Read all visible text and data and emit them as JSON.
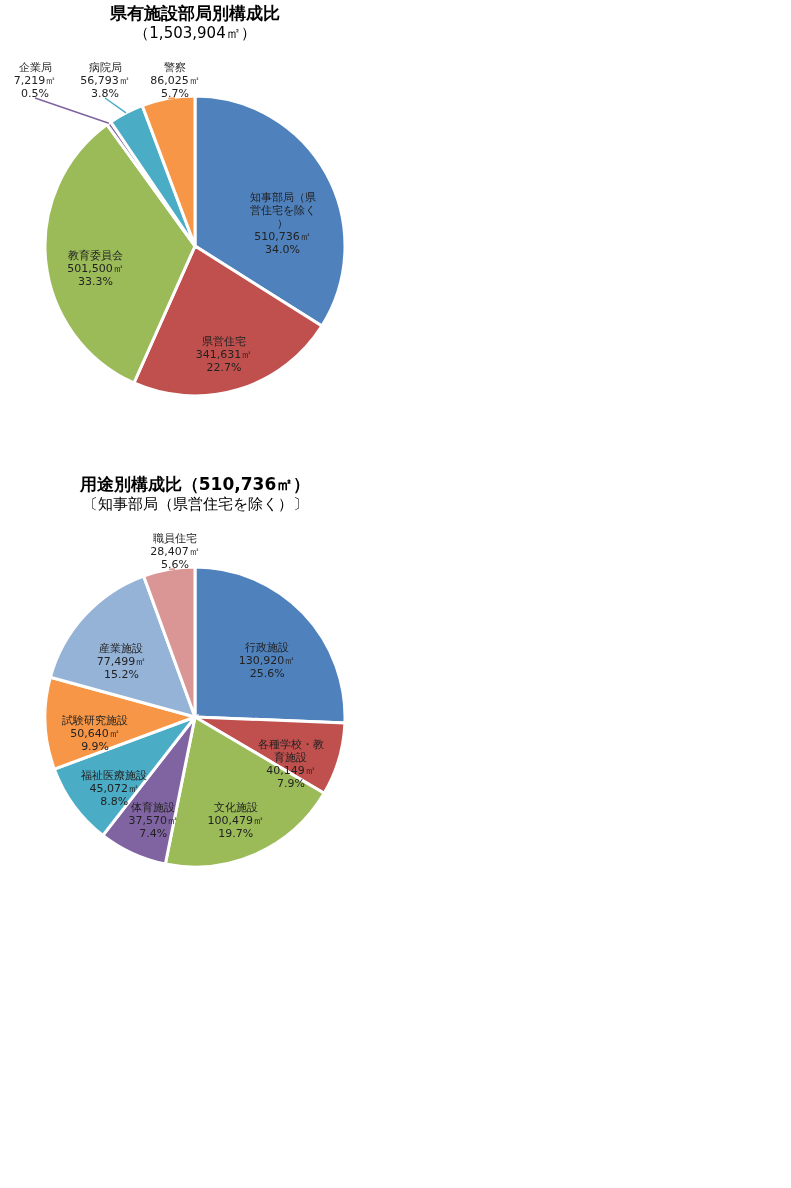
{
  "chart_data": [
    {
      "type": "pie",
      "title": "県有施設部局別構成比",
      "subtitle": "（1,503,904㎡）",
      "categories": [
        "知事部局（県営住宅を除く）",
        "県営住宅",
        "教育委員会",
        "企業局",
        "病院局",
        "警察"
      ],
      "values": [
        510736,
        341631,
        501500,
        7219,
        56793,
        86025
      ],
      "colors": [
        "#4f81bd",
        "#c0504d",
        "#9bbb59",
        "#8064a2",
        "#4bacc6",
        "#f79646"
      ],
      "value_labels": [
        "510,736㎡ 34.0%",
        "341,631㎡ 22.7%",
        "501,500㎡ 33.3%",
        "7,219㎡ 0.5%",
        "56,793㎡ 3.8%",
        "86,025㎡ 5.7%"
      ],
      "legend": false
    },
    {
      "type": "pie",
      "title": "用途別構成比（510,736㎡）",
      "subtitle": "〔知事部局（県営住宅を除く）〕",
      "categories": [
        "行政施設",
        "各種学校・教育施設",
        "文化施設",
        "体育施設",
        "福祉医療施設",
        "試験研究施設",
        "産業施設",
        "職員住宅"
      ],
      "values": [
        130920,
        40149,
        100479,
        37570,
        45072,
        50640,
        77499,
        28407
      ],
      "colors": [
        "#4f81bd",
        "#c0504d",
        "#9bbb59",
        "#8064a2",
        "#4bacc6",
        "#f79646",
        "#95b3d7",
        "#d99694"
      ],
      "value_labels": [
        "130,920㎡ 25.6%",
        "40,149㎡ 7.9%",
        "100,479㎡ 19.7%",
        "37,570㎡ 7.4%",
        "45,072㎡ 8.8%",
        "50,640㎡ 9.9%",
        "77,499㎡ 15.2%",
        "28,407㎡ 5.6%"
      ],
      "legend": false
    }
  ]
}
